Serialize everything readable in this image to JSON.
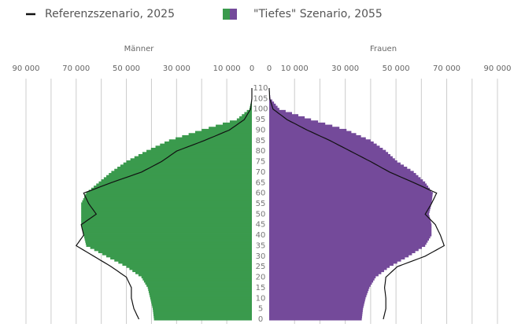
{
  "chart_data": {
    "type": "pyramid",
    "legend": [
      {
        "name": "Referenzszenario, 2025",
        "color": "#111111"
      },
      {
        "name": "\"Tiefes\" Szenario, 2055",
        "colors": [
          "#3a9a4d",
          "#744a9a"
        ]
      }
    ],
    "categories": [
      0,
      null,
      null,
      null,
      null,
      5,
      null,
      null,
      null,
      null,
      10,
      null,
      null,
      null,
      null,
      15,
      null,
      null,
      null,
      null,
      20,
      null,
      null,
      null,
      null,
      25,
      null,
      null,
      null,
      null,
      30,
      null,
      null,
      null,
      null,
      35,
      null,
      null,
      null,
      null,
      40,
      null,
      null,
      null,
      null,
      45,
      null,
      null,
      null,
      null,
      50,
      null,
      null,
      null,
      null,
      55,
      null,
      null,
      null,
      null,
      60,
      null,
      null,
      null,
      null,
      65,
      null,
      null,
      null,
      null,
      70,
      null,
      null,
      null,
      null,
      75,
      null,
      null,
      null,
      null,
      80,
      null,
      null,
      null,
      null,
      85,
      null,
      null,
      null,
      null,
      90,
      null,
      null,
      null,
      null,
      95,
      null,
      null,
      null,
      null,
      100,
      null,
      null,
      null,
      null,
      105,
      null,
      null,
      null,
      null,
      110
    ],
    "sides": [
      {
        "label": "Männer",
        "color": "#3a9a4d",
        "xlim": [
          0,
          90000
        ],
        "xticks": [
          {
            "value": 90000,
            "label": "90 000"
          },
          {
            "value": 70000,
            "label": "70 000"
          },
          {
            "value": 50000,
            "label": "50 000"
          },
          {
            "value": 30000,
            "label": "30 000"
          },
          {
            "value": 10000,
            "label": "10 000"
          },
          0
        ],
        "xgrid": [
          10000,
          20000,
          30000,
          40000,
          50000,
          60000,
          70000,
          80000,
          90000
        ],
        "bars": [
          39000,
          39100,
          39200,
          39300,
          39400,
          39500,
          39700,
          39900,
          40100,
          40300,
          40500,
          40700,
          40900,
          41100,
          41300,
          41500,
          42000,
          42500,
          43000,
          43500,
          44000,
          45200,
          46400,
          47600,
          48800,
          50000,
          51600,
          53200,
          54800,
          56400,
          58000,
          59600,
          61200,
          62800,
          64400,
          66000,
          66200,
          66400,
          66600,
          66800,
          67000,
          67200,
          67400,
          67600,
          67800,
          68000,
          68000,
          68000,
          68000,
          68000,
          68000,
          68000,
          68000,
          68000,
          68000,
          68000,
          67600,
          67200,
          66800,
          66400,
          66000,
          65000,
          64000,
          63000,
          62000,
          61000,
          60000,
          59000,
          58000,
          57000,
          56000,
          54800,
          53600,
          52400,
          51200,
          50000,
          48400,
          46800,
          45200,
          43600,
          42000,
          40200,
          38400,
          36600,
          34800,
          33000,
          30400,
          27800,
          25200,
          22600,
          20000,
          17200,
          14400,
          11600,
          8800,
          6000,
          5000,
          4000,
          3000,
          2000,
          1000,
          800,
          600,
          400,
          200,
          0,
          0,
          0,
          0,
          0,
          0
        ],
        "line": [
          45000,
          45400,
          45800,
          46200,
          46600,
          47000,
          47200,
          47400,
          47600,
          47800,
          48000,
          48000,
          48000,
          48000,
          48000,
          48000,
          48400,
          48800,
          49200,
          49600,
          50000,
          51200,
          52400,
          53600,
          54800,
          56000,
          57400,
          58800,
          60200,
          61600,
          63000,
          64400,
          65800,
          67200,
          68600,
          70000,
          69400,
          68800,
          68200,
          67600,
          67000,
          67200,
          67400,
          67600,
          67800,
          68000,
          66800,
          65600,
          64400,
          63200,
          62000,
          62600,
          63200,
          63800,
          64400,
          65000,
          65400,
          65800,
          66200,
          66600,
          67000,
          64800,
          62600,
          60400,
          58200,
          56000,
          53600,
          51200,
          48800,
          46400,
          44000,
          42400,
          40800,
          39200,
          37600,
          36000,
          34800,
          33600,
          32400,
          31200,
          30000,
          27800,
          25600,
          23400,
          21200,
          19000,
          17000,
          15000,
          13000,
          11000,
          9000,
          7800,
          6600,
          5400,
          4200,
          3000,
          2500,
          2000,
          1500,
          1000,
          500,
          400,
          300,
          200,
          100,
          0,
          0,
          0,
          0,
          0,
          0
        ]
      },
      {
        "label": "Frauen",
        "color": "#744a9a",
        "xlim": [
          0,
          90000
        ],
        "xticks": [
          0,
          {
            "value": 10000,
            "label": "10 000"
          },
          {
            "value": 30000,
            "label": "30 000"
          },
          {
            "value": 50000,
            "label": "50 000"
          },
          {
            "value": 70000,
            "label": "70 000"
          },
          {
            "value": 90000,
            "label": "90 000"
          }
        ],
        "xgrid": [
          10000,
          20000,
          30000,
          40000,
          50000,
          60000,
          70000,
          80000,
          90000
        ],
        "bars": [
          36500,
          36600,
          36700,
          36800,
          36900,
          37000,
          37200,
          37400,
          37600,
          37800,
          38000,
          38300,
          38600,
          38900,
          39200,
          39500,
          40000,
          40500,
          41000,
          41500,
          42000,
          43100,
          44200,
          45300,
          46400,
          47500,
          49000,
          50500,
          52000,
          53500,
          55000,
          56300,
          57600,
          58900,
          60200,
          61500,
          62000,
          62500,
          63000,
          63500,
          64000,
          64000,
          64000,
          64000,
          64000,
          64000,
          63800,
          63600,
          63400,
          63200,
          63000,
          63200,
          63400,
          63600,
          63800,
          64000,
          64100,
          64200,
          64300,
          64400,
          64500,
          63900,
          63300,
          62700,
          62100,
          61500,
          60600,
          59700,
          58800,
          57900,
          57000,
          55700,
          54400,
          53100,
          51800,
          50500,
          49600,
          48700,
          47800,
          46900,
          46000,
          44800,
          43600,
          42400,
          41200,
          40000,
          38100,
          36200,
          34300,
          32400,
          30500,
          27700,
          24900,
          22100,
          19300,
          16500,
          14000,
          11500,
          9000,
          6500,
          4000,
          3300,
          2600,
          1900,
          1200,
          500,
          400,
          300,
          200,
          100,
          0
        ],
        "line": [
          45000,
          45200,
          45400,
          45600,
          45800,
          46000,
          46000,
          46000,
          46000,
          46000,
          46000,
          45900,
          45800,
          45700,
          45600,
          45500,
          45600,
          45700,
          45800,
          45900,
          46000,
          46900,
          47800,
          48700,
          49600,
          50500,
          52700,
          54900,
          57100,
          59300,
          61500,
          63000,
          64500,
          66000,
          67500,
          69000,
          68700,
          68400,
          68100,
          67800,
          67500,
          67100,
          66700,
          66300,
          65900,
          65500,
          64700,
          63900,
          63100,
          62300,
          61500,
          62000,
          62500,
          63000,
          63500,
          64000,
          64400,
          64800,
          65200,
          65600,
          66000,
          64200,
          62400,
          60600,
          58800,
          57000,
          55100,
          53200,
          51300,
          49400,
          47500,
          46000,
          44500,
          43000,
          41500,
          40000,
          38400,
          36800,
          35200,
          33600,
          32000,
          30400,
          28800,
          27200,
          25600,
          24000,
          22200,
          20400,
          18600,
          16800,
          15000,
          13400,
          11800,
          10200,
          8600,
          7000,
          5900,
          4800,
          3700,
          2600,
          1500,
          1240,
          980,
          720,
          460,
          200,
          160,
          120,
          80,
          40,
          0
        ]
      }
    ]
  }
}
